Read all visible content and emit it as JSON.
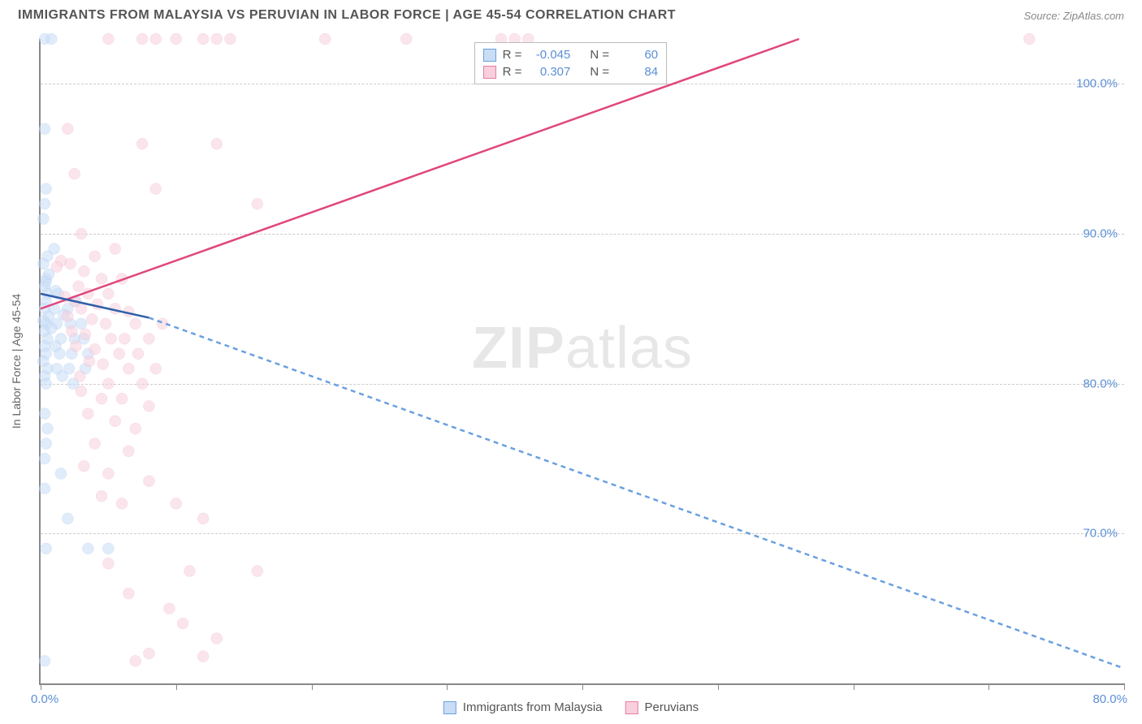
{
  "title": "IMMIGRANTS FROM MALAYSIA VS PERUVIAN IN LABOR FORCE | AGE 45-54 CORRELATION CHART",
  "source_label": "Source: ZipAtlas.com",
  "watermark": {
    "bold": "ZIP",
    "rest": "atlas"
  },
  "y_axis_label": "In Labor Force | Age 45-54",
  "legend_bottom": {
    "series_a": "Immigrants from Malaysia",
    "series_b": "Peruvians"
  },
  "stats": {
    "series_a": {
      "r_label": "R =",
      "r_value": "-0.045",
      "n_label": "N =",
      "n_value": "60"
    },
    "series_b": {
      "r_label": "R =",
      "r_value": "0.307",
      "n_label": "N =",
      "n_value": "84"
    }
  },
  "chart": {
    "type": "scatter",
    "x_range_pct": [
      0,
      80
    ],
    "y_range_pct": [
      60,
      103
    ],
    "x_origin_label": "0.0%",
    "x_end_label": "80.0%",
    "x_ticks_pct": [
      0,
      10,
      20,
      30,
      40,
      50,
      60,
      70,
      80
    ],
    "y_ticks": [
      {
        "value_pct": 70,
        "label": "70.0%"
      },
      {
        "value_pct": 80,
        "label": "80.0%"
      },
      {
        "value_pct": 90,
        "label": "90.0%"
      },
      {
        "value_pct": 100,
        "label": "100.0%"
      }
    ],
    "colors": {
      "series_a_stroke": "#6aa0e0",
      "series_a_fill": "#c9ddf5",
      "series_b_stroke": "#e87da2",
      "series_b_fill": "#f7cfdd",
      "grid": "#cccccc",
      "axis": "#888888",
      "tick_label": "#5b8fd6",
      "trend_a_solid": "#2f5fa8",
      "trend_a_dash": "#6aa0e0",
      "trend_b": "#e0467d"
    },
    "marker_radius": 7,
    "marker_stroke_width": 1.5,
    "trend_line_width": 2.5,
    "trend_lines": {
      "series_a": {
        "start": [
          0,
          86
        ],
        "solid_to": [
          8,
          84.4
        ],
        "dash_to": [
          80,
          61
        ]
      },
      "series_b": {
        "start": [
          0,
          85
        ],
        "end": [
          56,
          103
        ]
      }
    },
    "series_a_points": [
      [
        0.3,
        103
      ],
      [
        0.8,
        103
      ],
      [
        0.3,
        97
      ],
      [
        0.4,
        93
      ],
      [
        0.3,
        92
      ],
      [
        0.2,
        91
      ],
      [
        1.0,
        89
      ],
      [
        0.5,
        88.5
      ],
      [
        0.2,
        88
      ],
      [
        0.4,
        87
      ],
      [
        0.3,
        86.5
      ],
      [
        0.5,
        86
      ],
      [
        0.4,
        85.5
      ],
      [
        0.3,
        85
      ],
      [
        0.6,
        84.5
      ],
      [
        0.4,
        84
      ],
      [
        0.3,
        83.5
      ],
      [
        0.5,
        83
      ],
      [
        0.3,
        82.5
      ],
      [
        0.4,
        82
      ],
      [
        0.2,
        81.5
      ],
      [
        0.5,
        81
      ],
      [
        0.3,
        80.5
      ],
      [
        0.4,
        80
      ],
      [
        1.3,
        86
      ],
      [
        1.0,
        85
      ],
      [
        1.2,
        84
      ],
      [
        1.5,
        83
      ],
      [
        1.1,
        82.5
      ],
      [
        1.4,
        82
      ],
      [
        1.2,
        81
      ],
      [
        1.6,
        80.5
      ],
      [
        2.0,
        85
      ],
      [
        2.2,
        84
      ],
      [
        2.5,
        83
      ],
      [
        2.3,
        82
      ],
      [
        2.1,
        81
      ],
      [
        2.4,
        80
      ],
      [
        3.0,
        84
      ],
      [
        3.2,
        83
      ],
      [
        3.5,
        82
      ],
      [
        3.3,
        81
      ],
      [
        0.3,
        78
      ],
      [
        0.5,
        77
      ],
      [
        0.4,
        76
      ],
      [
        0.3,
        75
      ],
      [
        1.5,
        74
      ],
      [
        0.3,
        73
      ],
      [
        2.0,
        71
      ],
      [
        0.4,
        69
      ],
      [
        3.5,
        69
      ],
      [
        5.0,
        69
      ],
      [
        0.3,
        61.5
      ],
      [
        0.4,
        86.8
      ],
      [
        0.6,
        87.3
      ],
      [
        0.2,
        84.2
      ],
      [
        0.8,
        83.7
      ],
      [
        1.1,
        86.2
      ],
      [
        1.7,
        84.6
      ],
      [
        2.6,
        85.5
      ]
    ],
    "series_b_points": [
      [
        5.0,
        103
      ],
      [
        7.5,
        103
      ],
      [
        8.5,
        103
      ],
      [
        10,
        103
      ],
      [
        12,
        103
      ],
      [
        13,
        103
      ],
      [
        14,
        103
      ],
      [
        21,
        103
      ],
      [
        27,
        103
      ],
      [
        34,
        103
      ],
      [
        35,
        103
      ],
      [
        36,
        103
      ],
      [
        73,
        103
      ],
      [
        2.0,
        97
      ],
      [
        7.5,
        96
      ],
      [
        13,
        96
      ],
      [
        2.5,
        94
      ],
      [
        8.5,
        93
      ],
      [
        16,
        92
      ],
      [
        3.0,
        90
      ],
      [
        5.5,
        89
      ],
      [
        4.0,
        88.5
      ],
      [
        1.5,
        88.2
      ],
      [
        2.2,
        88
      ],
      [
        3.2,
        87.5
      ],
      [
        4.5,
        87
      ],
      [
        6.0,
        87
      ],
      [
        2.8,
        86.5
      ],
      [
        3.5,
        86
      ],
      [
        5.0,
        86
      ],
      [
        1.8,
        85.8
      ],
      [
        2.5,
        85.5
      ],
      [
        4.2,
        85.3
      ],
      [
        3.0,
        85
      ],
      [
        5.5,
        85
      ],
      [
        6.5,
        84.8
      ],
      [
        2.0,
        84.5
      ],
      [
        3.8,
        84.3
      ],
      [
        4.8,
        84
      ],
      [
        7.0,
        84
      ],
      [
        2.3,
        83.5
      ],
      [
        3.3,
        83.3
      ],
      [
        5.2,
        83
      ],
      [
        6.2,
        83
      ],
      [
        8.0,
        83
      ],
      [
        9.0,
        84
      ],
      [
        2.6,
        82.5
      ],
      [
        4.0,
        82.3
      ],
      [
        5.8,
        82
      ],
      [
        7.2,
        82
      ],
      [
        3.6,
        81.5
      ],
      [
        4.6,
        81.3
      ],
      [
        6.5,
        81
      ],
      [
        8.5,
        81
      ],
      [
        2.9,
        80.5
      ],
      [
        5.0,
        80
      ],
      [
        7.5,
        80
      ],
      [
        3.0,
        79.5
      ],
      [
        4.5,
        79
      ],
      [
        6.0,
        79
      ],
      [
        8.0,
        78.5
      ],
      [
        3.5,
        78
      ],
      [
        5.5,
        77.5
      ],
      [
        7.0,
        77
      ],
      [
        4.0,
        76
      ],
      [
        6.5,
        75.5
      ],
      [
        3.2,
        74.5
      ],
      [
        5.0,
        74
      ],
      [
        8.0,
        73.5
      ],
      [
        4.5,
        72.5
      ],
      [
        6.0,
        72
      ],
      [
        10,
        72
      ],
      [
        12,
        71
      ],
      [
        5.0,
        68
      ],
      [
        11,
        67.5
      ],
      [
        16,
        67.5
      ],
      [
        6.5,
        66
      ],
      [
        9.5,
        65
      ],
      [
        10.5,
        64
      ],
      [
        13,
        63
      ],
      [
        8.0,
        62
      ],
      [
        7.0,
        61.5
      ],
      [
        12,
        61.8
      ],
      [
        1.2,
        87.8
      ]
    ]
  }
}
